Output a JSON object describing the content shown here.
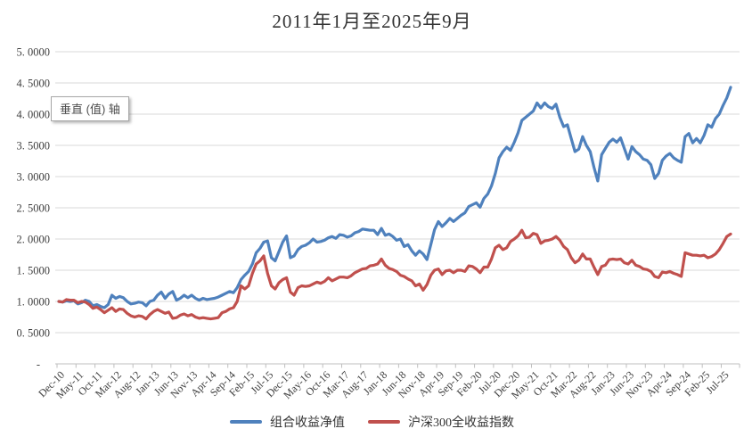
{
  "header": {
    "title": "2011年1月至2025年9月"
  },
  "tooltip": {
    "label": "垂直 (值) 轴"
  },
  "colors": {
    "series_blue": "#4F81BD",
    "series_red": "#C0504D",
    "gridline": "#D9D9D9",
    "axis_line": "#BFBFBF",
    "tick_text": "#404040",
    "title_text": "#333333"
  },
  "chart_data": {
    "type": "line",
    "title": "2011年1月至2025年9月",
    "xlabel": "",
    "ylabel": "",
    "ylim": [
      0,
      5
    ],
    "y_tick_step": 0.5,
    "grid": true,
    "legend_position": "bottom",
    "x_range_months": [
      "Dec-10",
      "Sep-25"
    ],
    "x_tick_labels": [
      "Dec-10",
      "May-11",
      "Oct-11",
      "Mar-12",
      "Aug-12",
      "Jan-13",
      "Jun-13",
      "Nov-13",
      "Apr-14",
      "Sep-14",
      "Feb-15",
      "Jul-15",
      "Dec-15",
      "May-16",
      "Oct-16",
      "Mar-17",
      "Aug-17",
      "Jan-18",
      "Jun-18",
      "Nov-18",
      "Apr-19",
      "Sep-19",
      "Feb-20",
      "Jul-20",
      "Dec-20",
      "May-21",
      "Oct-21",
      "Mar-22",
      "Aug-22",
      "Jan-23",
      "Jun-23",
      "Nov-23",
      "Apr-24",
      "Sep-24",
      "Feb-25",
      "Jul-25"
    ],
    "y_tick_labels": [
      "5. 0000",
      "4. 5000",
      "4. 0000",
      "3. 5000",
      "3. 0000",
      "2. 5000",
      "2. 0000",
      "1. 5000",
      "1. 0000",
      "0. 5000",
      "-"
    ],
    "series": [
      {
        "name": "组合收益净值",
        "color": "#4F81BD",
        "values": [
          1.0,
          0.99,
          1.01,
          1.0,
          1.01,
          0.96,
          0.98,
          1.02,
          1.0,
          0.93,
          0.95,
          0.92,
          0.9,
          0.95,
          1.1,
          1.05,
          1.08,
          1.06,
          1.0,
          0.96,
          0.97,
          0.99,
          0.98,
          0.93,
          1.0,
          1.02,
          1.1,
          1.15,
          1.05,
          1.12,
          1.16,
          1.02,
          1.05,
          1.1,
          1.06,
          1.1,
          1.05,
          1.02,
          1.05,
          1.03,
          1.04,
          1.05,
          1.07,
          1.1,
          1.13,
          1.16,
          1.14,
          1.22,
          1.35,
          1.42,
          1.48,
          1.6,
          1.78,
          1.85,
          1.95,
          1.97,
          1.7,
          1.65,
          1.8,
          1.95,
          2.05,
          1.7,
          1.73,
          1.83,
          1.88,
          1.9,
          1.94,
          2.0,
          1.95,
          1.96,
          1.98,
          2.02,
          2.04,
          2.01,
          2.07,
          2.06,
          2.03,
          2.05,
          2.1,
          2.12,
          2.16,
          2.15,
          2.14,
          2.14,
          2.07,
          2.17,
          2.06,
          2.08,
          2.04,
          1.98,
          2.0,
          1.88,
          1.91,
          1.81,
          1.74,
          1.81,
          1.76,
          1.67,
          1.91,
          2.15,
          2.28,
          2.2,
          2.26,
          2.33,
          2.28,
          2.33,
          2.38,
          2.42,
          2.52,
          2.55,
          2.58,
          2.51,
          2.65,
          2.72,
          2.85,
          3.05,
          3.3,
          3.4,
          3.47,
          3.42,
          3.55,
          3.7,
          3.9,
          3.95,
          4.0,
          4.05,
          4.18,
          4.1,
          4.18,
          4.12,
          4.09,
          4.16,
          3.95,
          3.8,
          3.83,
          3.61,
          3.4,
          3.44,
          3.64,
          3.5,
          3.4,
          3.15,
          2.93,
          3.35,
          3.45,
          3.55,
          3.6,
          3.55,
          3.62,
          3.45,
          3.28,
          3.48,
          3.4,
          3.35,
          3.28,
          3.26,
          3.19,
          2.97,
          3.05,
          3.26,
          3.33,
          3.37,
          3.3,
          3.26,
          3.23,
          3.64,
          3.69,
          3.54,
          3.61,
          3.54,
          3.66,
          3.83,
          3.79,
          3.93,
          4.0,
          4.14,
          4.26,
          4.43
        ]
      },
      {
        "name": "沪深300全收益指数",
        "color": "#C0504D",
        "values": [
          1.0,
          0.99,
          1.03,
          1.02,
          1.02,
          0.98,
          1.0,
          0.99,
          0.95,
          0.89,
          0.91,
          0.87,
          0.82,
          0.86,
          0.9,
          0.84,
          0.88,
          0.87,
          0.81,
          0.77,
          0.75,
          0.77,
          0.76,
          0.72,
          0.79,
          0.84,
          0.87,
          0.84,
          0.81,
          0.83,
          0.73,
          0.74,
          0.78,
          0.8,
          0.77,
          0.79,
          0.75,
          0.73,
          0.74,
          0.73,
          0.72,
          0.73,
          0.74,
          0.82,
          0.84,
          0.88,
          0.9,
          1.0,
          1.25,
          1.2,
          1.25,
          1.45,
          1.6,
          1.65,
          1.73,
          1.45,
          1.25,
          1.2,
          1.3,
          1.35,
          1.38,
          1.15,
          1.1,
          1.22,
          1.25,
          1.24,
          1.25,
          1.28,
          1.31,
          1.29,
          1.32,
          1.38,
          1.33,
          1.36,
          1.39,
          1.39,
          1.38,
          1.41,
          1.46,
          1.49,
          1.52,
          1.53,
          1.57,
          1.58,
          1.6,
          1.68,
          1.58,
          1.53,
          1.51,
          1.48,
          1.42,
          1.4,
          1.36,
          1.33,
          1.25,
          1.28,
          1.18,
          1.27,
          1.42,
          1.5,
          1.52,
          1.43,
          1.49,
          1.5,
          1.46,
          1.5,
          1.5,
          1.48,
          1.57,
          1.56,
          1.52,
          1.46,
          1.55,
          1.55,
          1.68,
          1.86,
          1.9,
          1.83,
          1.86,
          1.96,
          2.0,
          2.05,
          2.14,
          2.02,
          2.03,
          2.09,
          2.07,
          1.93,
          1.97,
          1.98,
          2.0,
          2.04,
          1.98,
          1.88,
          1.83,
          1.7,
          1.62,
          1.66,
          1.76,
          1.68,
          1.68,
          1.55,
          1.43,
          1.56,
          1.58,
          1.67,
          1.68,
          1.67,
          1.68,
          1.62,
          1.6,
          1.66,
          1.58,
          1.56,
          1.52,
          1.51,
          1.48,
          1.4,
          1.38,
          1.47,
          1.46,
          1.48,
          1.45,
          1.43,
          1.4,
          1.78,
          1.76,
          1.74,
          1.74,
          1.73,
          1.74,
          1.7,
          1.72,
          1.76,
          1.83,
          1.93,
          2.04,
          2.08
        ]
      }
    ]
  }
}
